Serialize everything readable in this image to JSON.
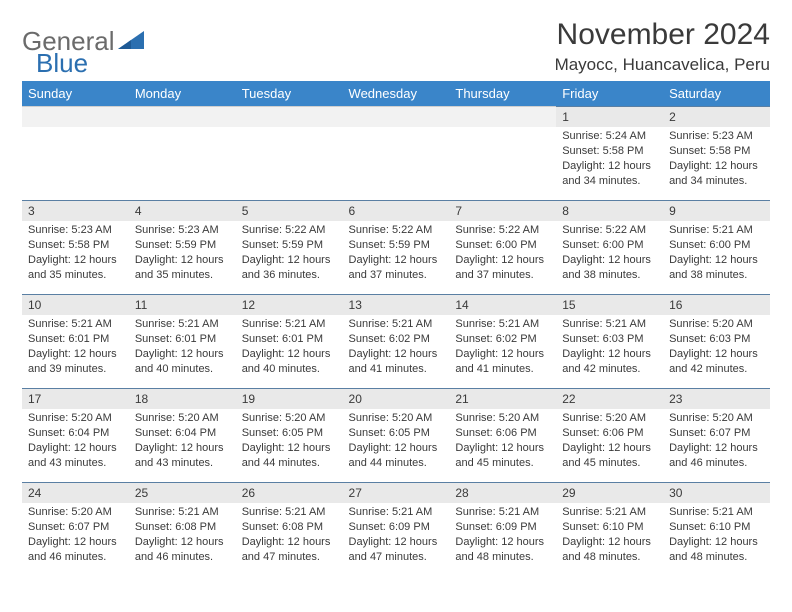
{
  "logo": {
    "part1": "General",
    "part2": "Blue"
  },
  "title": "November 2024",
  "location": "Mayocc, Huancavelica, Peru",
  "colors": {
    "header_bg": "#3a85c9",
    "header_text": "#ffffff",
    "daynum_bg": "#e9e9e9",
    "daynum_border": "#5a7fa3",
    "text": "#3a3a3a",
    "logo_blue": "#2b6fb0",
    "logo_gray": "#6b6b6b"
  },
  "weekdays": [
    "Sunday",
    "Monday",
    "Tuesday",
    "Wednesday",
    "Thursday",
    "Friday",
    "Saturday"
  ],
  "weeks": [
    [
      null,
      null,
      null,
      null,
      null,
      {
        "n": "1",
        "sr": "Sunrise: 5:24 AM",
        "ss": "Sunset: 5:58 PM",
        "dl1": "Daylight: 12 hours",
        "dl2": "and 34 minutes."
      },
      {
        "n": "2",
        "sr": "Sunrise: 5:23 AM",
        "ss": "Sunset: 5:58 PM",
        "dl1": "Daylight: 12 hours",
        "dl2": "and 34 minutes."
      }
    ],
    [
      {
        "n": "3",
        "sr": "Sunrise: 5:23 AM",
        "ss": "Sunset: 5:58 PM",
        "dl1": "Daylight: 12 hours",
        "dl2": "and 35 minutes."
      },
      {
        "n": "4",
        "sr": "Sunrise: 5:23 AM",
        "ss": "Sunset: 5:59 PM",
        "dl1": "Daylight: 12 hours",
        "dl2": "and 35 minutes."
      },
      {
        "n": "5",
        "sr": "Sunrise: 5:22 AM",
        "ss": "Sunset: 5:59 PM",
        "dl1": "Daylight: 12 hours",
        "dl2": "and 36 minutes."
      },
      {
        "n": "6",
        "sr": "Sunrise: 5:22 AM",
        "ss": "Sunset: 5:59 PM",
        "dl1": "Daylight: 12 hours",
        "dl2": "and 37 minutes."
      },
      {
        "n": "7",
        "sr": "Sunrise: 5:22 AM",
        "ss": "Sunset: 6:00 PM",
        "dl1": "Daylight: 12 hours",
        "dl2": "and 37 minutes."
      },
      {
        "n": "8",
        "sr": "Sunrise: 5:22 AM",
        "ss": "Sunset: 6:00 PM",
        "dl1": "Daylight: 12 hours",
        "dl2": "and 38 minutes."
      },
      {
        "n": "9",
        "sr": "Sunrise: 5:21 AM",
        "ss": "Sunset: 6:00 PM",
        "dl1": "Daylight: 12 hours",
        "dl2": "and 38 minutes."
      }
    ],
    [
      {
        "n": "10",
        "sr": "Sunrise: 5:21 AM",
        "ss": "Sunset: 6:01 PM",
        "dl1": "Daylight: 12 hours",
        "dl2": "and 39 minutes."
      },
      {
        "n": "11",
        "sr": "Sunrise: 5:21 AM",
        "ss": "Sunset: 6:01 PM",
        "dl1": "Daylight: 12 hours",
        "dl2": "and 40 minutes."
      },
      {
        "n": "12",
        "sr": "Sunrise: 5:21 AM",
        "ss": "Sunset: 6:01 PM",
        "dl1": "Daylight: 12 hours",
        "dl2": "and 40 minutes."
      },
      {
        "n": "13",
        "sr": "Sunrise: 5:21 AM",
        "ss": "Sunset: 6:02 PM",
        "dl1": "Daylight: 12 hours",
        "dl2": "and 41 minutes."
      },
      {
        "n": "14",
        "sr": "Sunrise: 5:21 AM",
        "ss": "Sunset: 6:02 PM",
        "dl1": "Daylight: 12 hours",
        "dl2": "and 41 minutes."
      },
      {
        "n": "15",
        "sr": "Sunrise: 5:21 AM",
        "ss": "Sunset: 6:03 PM",
        "dl1": "Daylight: 12 hours",
        "dl2": "and 42 minutes."
      },
      {
        "n": "16",
        "sr": "Sunrise: 5:20 AM",
        "ss": "Sunset: 6:03 PM",
        "dl1": "Daylight: 12 hours",
        "dl2": "and 42 minutes."
      }
    ],
    [
      {
        "n": "17",
        "sr": "Sunrise: 5:20 AM",
        "ss": "Sunset: 6:04 PM",
        "dl1": "Daylight: 12 hours",
        "dl2": "and 43 minutes."
      },
      {
        "n": "18",
        "sr": "Sunrise: 5:20 AM",
        "ss": "Sunset: 6:04 PM",
        "dl1": "Daylight: 12 hours",
        "dl2": "and 43 minutes."
      },
      {
        "n": "19",
        "sr": "Sunrise: 5:20 AM",
        "ss": "Sunset: 6:05 PM",
        "dl1": "Daylight: 12 hours",
        "dl2": "and 44 minutes."
      },
      {
        "n": "20",
        "sr": "Sunrise: 5:20 AM",
        "ss": "Sunset: 6:05 PM",
        "dl1": "Daylight: 12 hours",
        "dl2": "and 44 minutes."
      },
      {
        "n": "21",
        "sr": "Sunrise: 5:20 AM",
        "ss": "Sunset: 6:06 PM",
        "dl1": "Daylight: 12 hours",
        "dl2": "and 45 minutes."
      },
      {
        "n": "22",
        "sr": "Sunrise: 5:20 AM",
        "ss": "Sunset: 6:06 PM",
        "dl1": "Daylight: 12 hours",
        "dl2": "and 45 minutes."
      },
      {
        "n": "23",
        "sr": "Sunrise: 5:20 AM",
        "ss": "Sunset: 6:07 PM",
        "dl1": "Daylight: 12 hours",
        "dl2": "and 46 minutes."
      }
    ],
    [
      {
        "n": "24",
        "sr": "Sunrise: 5:20 AM",
        "ss": "Sunset: 6:07 PM",
        "dl1": "Daylight: 12 hours",
        "dl2": "and 46 minutes."
      },
      {
        "n": "25",
        "sr": "Sunrise: 5:21 AM",
        "ss": "Sunset: 6:08 PM",
        "dl1": "Daylight: 12 hours",
        "dl2": "and 46 minutes."
      },
      {
        "n": "26",
        "sr": "Sunrise: 5:21 AM",
        "ss": "Sunset: 6:08 PM",
        "dl1": "Daylight: 12 hours",
        "dl2": "and 47 minutes."
      },
      {
        "n": "27",
        "sr": "Sunrise: 5:21 AM",
        "ss": "Sunset: 6:09 PM",
        "dl1": "Daylight: 12 hours",
        "dl2": "and 47 minutes."
      },
      {
        "n": "28",
        "sr": "Sunrise: 5:21 AM",
        "ss": "Sunset: 6:09 PM",
        "dl1": "Daylight: 12 hours",
        "dl2": "and 48 minutes."
      },
      {
        "n": "29",
        "sr": "Sunrise: 5:21 AM",
        "ss": "Sunset: 6:10 PM",
        "dl1": "Daylight: 12 hours",
        "dl2": "and 48 minutes."
      },
      {
        "n": "30",
        "sr": "Sunrise: 5:21 AM",
        "ss": "Sunset: 6:10 PM",
        "dl1": "Daylight: 12 hours",
        "dl2": "and 48 minutes."
      }
    ]
  ]
}
